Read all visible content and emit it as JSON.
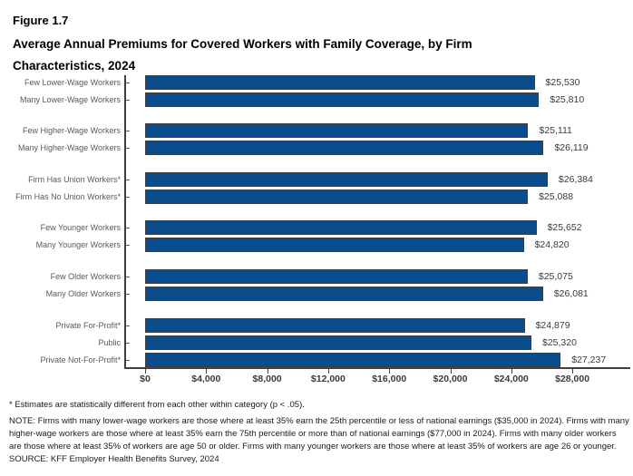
{
  "figure": {
    "label": "Figure 1.7",
    "title": "Average Annual Premiums for Covered Workers with Family Coverage, by Firm Characteristics, 2024"
  },
  "chart_data": {
    "type": "bar",
    "orientation": "horizontal",
    "title": "Average Annual Premiums for Covered Workers with Family Coverage, by Firm Characteristics, 2024",
    "xlabel": "",
    "ylabel": "",
    "xlim": [
      0,
      28000
    ],
    "grid": false,
    "bar_color": "#0b4d8c",
    "x_tick_values": [
      0,
      4000,
      8000,
      12000,
      16000,
      20000,
      24000,
      28000
    ],
    "x_tick_labels": [
      "$0",
      "$4,000",
      "$8,000",
      "$12,000",
      "$16,000",
      "$20,000",
      "$24,000",
      "$28,000"
    ],
    "groups": [
      {
        "name": "lower-wage-workers",
        "bars": [
          {
            "label": "Few Lower-Wage Workers",
            "value": 25530,
            "value_label": "$25,530"
          },
          {
            "label": "Many Lower-Wage Workers",
            "value": 25810,
            "value_label": "$25,810"
          }
        ]
      },
      {
        "name": "higher-wage-workers",
        "bars": [
          {
            "label": "Few Higher-Wage Workers",
            "value": 25111,
            "value_label": "$25,111"
          },
          {
            "label": "Many Higher-Wage Workers",
            "value": 26119,
            "value_label": "$26,119"
          }
        ]
      },
      {
        "name": "union-workers",
        "bars": [
          {
            "label": "Firm Has Union Workers*",
            "value": 26384,
            "value_label": "$26,384"
          },
          {
            "label": "Firm Has No Union Workers*",
            "value": 25088,
            "value_label": "$25,088"
          }
        ]
      },
      {
        "name": "younger-workers",
        "bars": [
          {
            "label": "Few Younger Workers",
            "value": 25652,
            "value_label": "$25,652"
          },
          {
            "label": "Many Younger Workers",
            "value": 24820,
            "value_label": "$24,820"
          }
        ]
      },
      {
        "name": "older-workers",
        "bars": [
          {
            "label": "Few Older Workers",
            "value": 25075,
            "value_label": "$25,075"
          },
          {
            "label": "Many Older Workers",
            "value": 26081,
            "value_label": "$26,081"
          }
        ]
      },
      {
        "name": "ownership",
        "bars": [
          {
            "label": "Private For-Profit*",
            "value": 24879,
            "value_label": "$24,879"
          },
          {
            "label": "Public",
            "value": 25320,
            "value_label": "$25,320"
          },
          {
            "label": "Private Not-For-Profit*",
            "value": 27237,
            "value_label": "$27,237"
          }
        ]
      }
    ]
  },
  "footnotes": {
    "asterisk": "* Estimates are statistically different from each other within category (p < .05).",
    "note": "NOTE: Firms with many lower-wage workers are those where at least 35% earn the 25th percentile or less of national earnings ($35,000 in 2024). Firms with many higher-wage workers are those where at least 35% earn the 75th percentile or more than of national earnings ($77,000 in 2024). Firms with many older workers are those where at least 35% of workers are age 50 or older. Firms with many younger workers are those where at least 35% of workers are age 26 or younger.",
    "source": "SOURCE: KFF Employer Health Benefits Survey, 2024"
  }
}
